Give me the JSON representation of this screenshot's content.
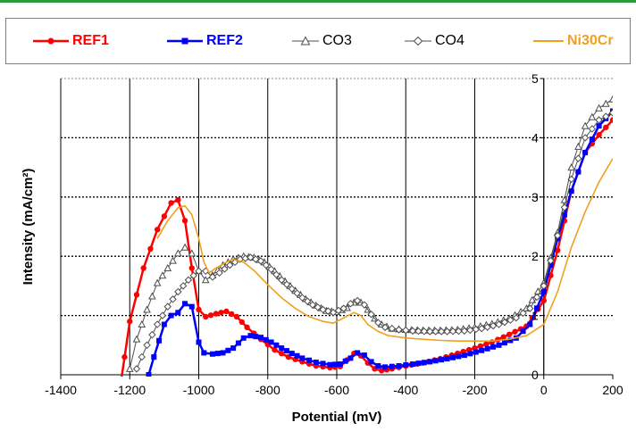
{
  "chart_data": {
    "type": "line",
    "xlabel": "Potential (mV)",
    "ylabel": "Intensity (mA/cm²)",
    "xlim": [
      -1400,
      200
    ],
    "ylim": [
      0,
      5
    ],
    "x_ticks": [
      "-1400",
      "-1200",
      "-1000",
      "-800",
      "-600",
      "-400",
      "-200",
      "0",
      "200"
    ],
    "y_ticks": [
      "0",
      "1",
      "2",
      "3",
      "4",
      "5"
    ],
    "legend_position": "top",
    "series": [
      {
        "name": "REF1",
        "color": "#ff0000",
        "marker": "circle",
        "points": [
          [
            -1230,
            -0.3
          ],
          [
            -1200,
            0.9
          ],
          [
            -1160,
            1.8
          ],
          [
            -1120,
            2.45
          ],
          [
            -1080,
            2.9
          ],
          [
            -1060,
            2.95
          ],
          [
            -1040,
            2.6
          ],
          [
            -1020,
            1.8
          ],
          [
            -1000,
            1.1
          ],
          [
            -980,
            0.98
          ],
          [
            -950,
            1.03
          ],
          [
            -920,
            1.07
          ],
          [
            -890,
            0.98
          ],
          [
            -860,
            0.8
          ],
          [
            -820,
            0.6
          ],
          [
            -780,
            0.42
          ],
          [
            -740,
            0.3
          ],
          [
            -700,
            0.22
          ],
          [
            -660,
            0.15
          ],
          [
            -620,
            0.12
          ],
          [
            -590,
            0.14
          ],
          [
            -570,
            0.25
          ],
          [
            -550,
            0.36
          ],
          [
            -530,
            0.32
          ],
          [
            -510,
            0.2
          ],
          [
            -490,
            0.1
          ],
          [
            -470,
            0.07
          ],
          [
            -440,
            0.1
          ],
          [
            -400,
            0.15
          ],
          [
            -350,
            0.2
          ],
          [
            -300,
            0.27
          ],
          [
            -250,
            0.36
          ],
          [
            -200,
            0.45
          ],
          [
            -150,
            0.55
          ],
          [
            -100,
            0.68
          ],
          [
            -50,
            0.82
          ],
          [
            0,
            1.25
          ],
          [
            40,
            2.1
          ],
          [
            80,
            3.1
          ],
          [
            120,
            3.75
          ],
          [
            160,
            4.05
          ],
          [
            200,
            4.3
          ]
        ]
      },
      {
        "name": "REF2",
        "color": "#0000ff",
        "marker": "square",
        "points": [
          [
            -1160,
            -0.3
          ],
          [
            -1130,
            0.3
          ],
          [
            -1100,
            0.85
          ],
          [
            -1080,
            1.0
          ],
          [
            -1060,
            1.05
          ],
          [
            -1040,
            1.2
          ],
          [
            -1020,
            1.15
          ],
          [
            -1000,
            0.55
          ],
          [
            -985,
            0.37
          ],
          [
            -960,
            0.35
          ],
          [
            -930,
            0.37
          ],
          [
            -900,
            0.45
          ],
          [
            -870,
            0.62
          ],
          [
            -850,
            0.66
          ],
          [
            -820,
            0.63
          ],
          [
            -790,
            0.55
          ],
          [
            -760,
            0.45
          ],
          [
            -730,
            0.36
          ],
          [
            -700,
            0.28
          ],
          [
            -660,
            0.21
          ],
          [
            -620,
            0.17
          ],
          [
            -590,
            0.18
          ],
          [
            -560,
            0.28
          ],
          [
            -540,
            0.37
          ],
          [
            -520,
            0.33
          ],
          [
            -500,
            0.22
          ],
          [
            -480,
            0.15
          ],
          [
            -460,
            0.13
          ],
          [
            -420,
            0.15
          ],
          [
            -380,
            0.18
          ],
          [
            -330,
            0.22
          ],
          [
            -280,
            0.27
          ],
          [
            -230,
            0.33
          ],
          [
            -180,
            0.41
          ],
          [
            -130,
            0.5
          ],
          [
            -80,
            0.62
          ],
          [
            -40,
            0.85
          ],
          [
            0,
            1.4
          ],
          [
            40,
            2.3
          ],
          [
            80,
            3.1
          ],
          [
            120,
            3.75
          ],
          [
            160,
            4.2
          ],
          [
            200,
            4.45
          ]
        ]
      },
      {
        "name": "CO3",
        "color": "#4d4d4d",
        "marker": "triangle",
        "points": [
          [
            -1200,
            0.1
          ],
          [
            -1180,
            0.6
          ],
          [
            -1150,
            1.1
          ],
          [
            -1120,
            1.55
          ],
          [
            -1090,
            1.8
          ],
          [
            -1060,
            2.05
          ],
          [
            -1040,
            2.15
          ],
          [
            -1020,
            2.05
          ],
          [
            -1000,
            1.75
          ],
          [
            -980,
            1.6
          ],
          [
            -960,
            1.68
          ],
          [
            -930,
            1.85
          ],
          [
            -900,
            1.95
          ],
          [
            -870,
            2.0
          ],
          [
            -840,
            1.98
          ],
          [
            -810,
            1.9
          ],
          [
            -780,
            1.75
          ],
          [
            -750,
            1.58
          ],
          [
            -720,
            1.42
          ],
          [
            -690,
            1.28
          ],
          [
            -660,
            1.17
          ],
          [
            -630,
            1.08
          ],
          [
            -600,
            1.06
          ],
          [
            -570,
            1.13
          ],
          [
            -550,
            1.22
          ],
          [
            -530,
            1.22
          ],
          [
            -510,
            1.1
          ],
          [
            -490,
            0.95
          ],
          [
            -470,
            0.85
          ],
          [
            -440,
            0.78
          ],
          [
            -400,
            0.76
          ],
          [
            -350,
            0.75
          ],
          [
            -300,
            0.75
          ],
          [
            -250,
            0.76
          ],
          [
            -200,
            0.8
          ],
          [
            -150,
            0.86
          ],
          [
            -100,
            0.95
          ],
          [
            -50,
            1.12
          ],
          [
            0,
            1.55
          ],
          [
            40,
            2.4
          ],
          [
            80,
            3.5
          ],
          [
            120,
            4.2
          ],
          [
            160,
            4.5
          ],
          [
            200,
            4.65
          ]
        ]
      },
      {
        "name": "CO4",
        "color": "#4d4d4d",
        "marker": "diamond",
        "points": [
          [
            -1180,
            0.1
          ],
          [
            -1150,
            0.5
          ],
          [
            -1120,
            0.85
          ],
          [
            -1090,
            1.15
          ],
          [
            -1060,
            1.4
          ],
          [
            -1030,
            1.6
          ],
          [
            -1000,
            1.75
          ],
          [
            -980,
            1.75
          ],
          [
            -960,
            1.65
          ],
          [
            -940,
            1.72
          ],
          [
            -910,
            1.85
          ],
          [
            -880,
            1.95
          ],
          [
            -850,
            1.98
          ],
          [
            -820,
            1.92
          ],
          [
            -790,
            1.78
          ],
          [
            -760,
            1.6
          ],
          [
            -730,
            1.45
          ],
          [
            -700,
            1.3
          ],
          [
            -670,
            1.18
          ],
          [
            -640,
            1.1
          ],
          [
            -610,
            1.05
          ],
          [
            -580,
            1.12
          ],
          [
            -560,
            1.2
          ],
          [
            -540,
            1.25
          ],
          [
            -520,
            1.18
          ],
          [
            -500,
            1.02
          ],
          [
            -480,
            0.88
          ],
          [
            -460,
            0.8
          ],
          [
            -420,
            0.76
          ],
          [
            -380,
            0.74
          ],
          [
            -330,
            0.73
          ],
          [
            -280,
            0.73
          ],
          [
            -230,
            0.74
          ],
          [
            -180,
            0.78
          ],
          [
            -130,
            0.85
          ],
          [
            -80,
            0.96
          ],
          [
            -40,
            1.12
          ],
          [
            0,
            1.5
          ],
          [
            40,
            2.35
          ],
          [
            80,
            3.3
          ],
          [
            120,
            4.0
          ],
          [
            160,
            4.3
          ],
          [
            200,
            4.42
          ]
        ]
      },
      {
        "name": "Ni30Cr",
        "color": "#f0a01e",
        "marker": "none",
        "points": [
          [
            -1120,
            2.3
          ],
          [
            -1090,
            2.6
          ],
          [
            -1060,
            2.82
          ],
          [
            -1040,
            2.85
          ],
          [
            -1020,
            2.7
          ],
          [
            -1000,
            2.3
          ],
          [
            -985,
            1.9
          ],
          [
            -970,
            1.72
          ],
          [
            -950,
            1.8
          ],
          [
            -920,
            1.9
          ],
          [
            -900,
            1.95
          ],
          [
            -870,
            1.9
          ],
          [
            -840,
            1.76
          ],
          [
            -800,
            1.52
          ],
          [
            -760,
            1.3
          ],
          [
            -720,
            1.12
          ],
          [
            -680,
            0.98
          ],
          [
            -640,
            0.9
          ],
          [
            -610,
            0.87
          ],
          [
            -580,
            0.96
          ],
          [
            -550,
            1.05
          ],
          [
            -530,
            1.0
          ],
          [
            -510,
            0.85
          ],
          [
            -480,
            0.73
          ],
          [
            -450,
            0.66
          ],
          [
            -400,
            0.62
          ],
          [
            -350,
            0.6
          ],
          [
            -300,
            0.58
          ],
          [
            -250,
            0.57
          ],
          [
            -200,
            0.57
          ],
          [
            -150,
            0.57
          ],
          [
            -100,
            0.6
          ],
          [
            -50,
            0.66
          ],
          [
            0,
            0.85
          ],
          [
            40,
            1.4
          ],
          [
            80,
            2.15
          ],
          [
            120,
            2.75
          ],
          [
            160,
            3.25
          ],
          [
            200,
            3.65
          ]
        ]
      }
    ]
  }
}
